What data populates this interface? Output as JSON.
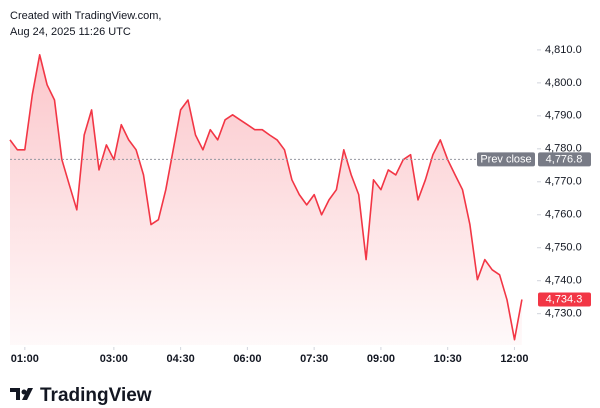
{
  "header": {
    "line1": "Created with TradingView.com,",
    "line2": "Aug 24, 2025 11:26 UTC"
  },
  "footer": {
    "brand": "TradingView"
  },
  "chart_data": {
    "type": "area",
    "color": "#f23645",
    "x": [
      "00:40",
      "00:50",
      "01:00",
      "01:10",
      "01:20",
      "01:30",
      "01:40",
      "01:50",
      "02:00",
      "02:10",
      "02:20",
      "02:30",
      "02:40",
      "02:50",
      "03:00",
      "03:10",
      "03:20",
      "03:30",
      "03:40",
      "03:50",
      "04:00",
      "04:10",
      "04:20",
      "04:30",
      "04:40",
      "04:50",
      "05:00",
      "05:10",
      "05:20",
      "05:30",
      "05:40",
      "05:50",
      "06:00",
      "06:10",
      "06:20",
      "06:30",
      "06:40",
      "06:50",
      "07:00",
      "07:10",
      "07:20",
      "07:30",
      "07:40",
      "07:50",
      "08:00",
      "08:10",
      "08:20",
      "08:30",
      "08:40",
      "08:50",
      "09:00",
      "09:10",
      "09:20",
      "09:30",
      "09:40",
      "09:50",
      "10:00",
      "10:10",
      "10:20",
      "10:30",
      "10:40",
      "10:50",
      "11:00",
      "11:10",
      "11:20",
      "11:30",
      "11:40",
      "11:50",
      "12:00",
      "12:10"
    ],
    "values": [
      4782.7,
      4779.7,
      4779.7,
      4796.4,
      4808.5,
      4799.4,
      4794.8,
      4776.7,
      4769.1,
      4761.5,
      4784.2,
      4791.8,
      4773.6,
      4781.2,
      4776.7,
      4787.3,
      4782.7,
      4779.7,
      4772.1,
      4757,
      4758.5,
      4767.6,
      4779.7,
      4791.8,
      4794.8,
      4784.2,
      4779.7,
      4785.8,
      4782.7,
      4788.8,
      4790.3,
      4788.8,
      4787.3,
      4785.8,
      4785.8,
      4784.2,
      4782.7,
      4779.7,
      4770.6,
      4766.1,
      4763,
      4766.1,
      4760,
      4764.5,
      4767.6,
      4779.7,
      4772.1,
      4766.1,
      4746.4,
      4770.6,
      4767.6,
      4773.6,
      4772.1,
      4776.7,
      4778.2,
      4764.5,
      4770.6,
      4778.2,
      4782.7,
      4776.7,
      4772.1,
      4767.6,
      4757,
      4740.3,
      4746.4,
      4743.3,
      4741.8,
      4734.2,
      4722.1,
      4734.3
    ],
    "xlim": [
      "00:40",
      "12:25"
    ],
    "xticks": [
      "01:00",
      "03:00",
      "04:30",
      "06:00",
      "07:30",
      "09:00",
      "10:30",
      "12:00"
    ],
    "ylim": [
      4720.5,
      4813
    ],
    "yticks": [
      {
        "value": 4730,
        "label": "4,730.0"
      },
      {
        "value": 4740,
        "label": "4,740.0"
      },
      {
        "value": 4750,
        "label": "4,750.0"
      },
      {
        "value": 4760,
        "label": "4,760.0"
      },
      {
        "value": 4770,
        "label": "4,770.0"
      },
      {
        "value": 4780,
        "label": "4,780.0"
      },
      {
        "value": 4790,
        "label": "4,790.0"
      },
      {
        "value": 4800,
        "label": "4,800.0"
      },
      {
        "value": 4810,
        "label": "4,810.0"
      }
    ],
    "prev_close": {
      "name": "Prev close",
      "value": 4776.8,
      "value_label": "4,776.8"
    },
    "last_value": {
      "value": 4734.3,
      "value_label": "4,734.3"
    }
  }
}
